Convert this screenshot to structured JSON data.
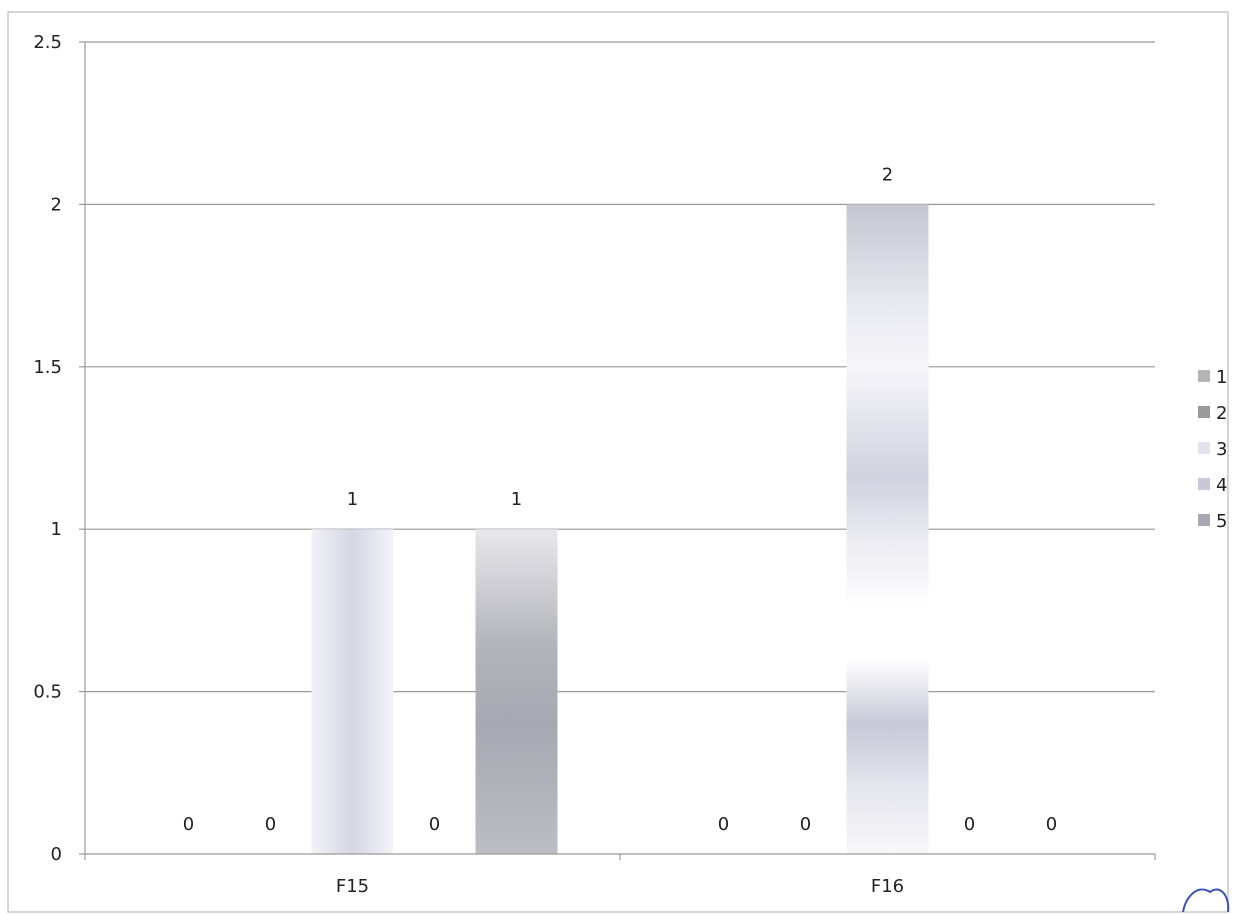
{
  "chart_data": {
    "type": "bar",
    "title": "",
    "xlabel": "",
    "ylabel": "",
    "categories": [
      "F15",
      "F16"
    ],
    "ylim": [
      0,
      2.5
    ],
    "y_ticks": [
      "0",
      "0.5",
      "1",
      "1.5",
      "2",
      "2.5"
    ],
    "grid": true,
    "legend_position": "right",
    "series": [
      {
        "name": "1",
        "values": [
          0,
          0
        ],
        "labels": [
          "0",
          "0"
        ],
        "color": "#b4b4b4"
      },
      {
        "name": "2",
        "values": [
          0,
          0
        ],
        "labels": [
          "0",
          "0"
        ],
        "color": "#9a9a9a"
      },
      {
        "name": "3",
        "values": [
          1,
          2
        ],
        "labels": [
          "1",
          "2"
        ],
        "color": "#e4e4ee"
      },
      {
        "name": "4",
        "values": [
          0,
          0
        ],
        "labels": [
          "0",
          "0"
        ],
        "color": "#c8c8d8"
      },
      {
        "name": "5",
        "values": [
          1,
          0
        ],
        "labels": [
          "1",
          "0"
        ],
        "color": "#a8a8b0"
      }
    ]
  }
}
